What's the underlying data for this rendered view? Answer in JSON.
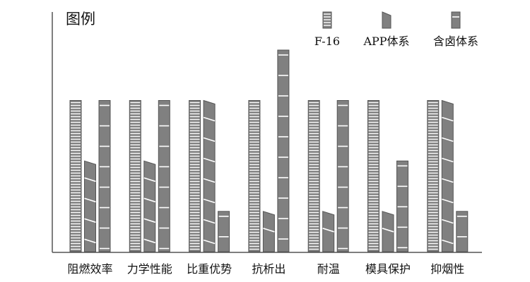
{
  "chart_data": {
    "type": "bar",
    "title": "",
    "legend_title": "图例",
    "legend_position": "top-right",
    "xlabel": "",
    "ylabel": "",
    "categories": [
      "阻燃效率",
      "力学性能",
      "比重优势",
      "抗析出",
      "耐温",
      "模具保护",
      "抑烟性"
    ],
    "series": [
      {
        "name": "F-16",
        "values": [
          7.5,
          7.5,
          7.5,
          7.5,
          7.5,
          7.5,
          7.5
        ]
      },
      {
        "name": "APP体系",
        "values": [
          4.5,
          4.5,
          7.5,
          2.0,
          2.0,
          2.0,
          7.5
        ]
      },
      {
        "name": "含卤体系",
        "values": [
          7.5,
          7.5,
          2.0,
          10.0,
          7.5,
          4.5,
          2.0
        ]
      }
    ],
    "ylim": [
      0,
      10
    ],
    "grid": false,
    "axes": {
      "y_axis_line": true,
      "y_ticks": false
    },
    "colors": {
      "axis": "#555555",
      "fill": "#808080",
      "outline": "#555555",
      "stripes": "#ffffff"
    }
  }
}
